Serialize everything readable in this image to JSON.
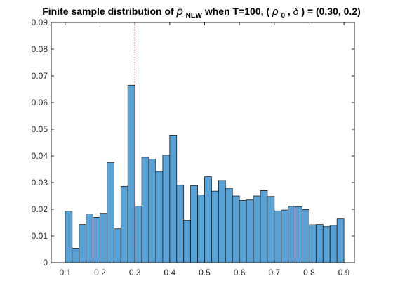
{
  "chart_data": {
    "type": "bar",
    "title": {
      "prefix": "Finite sample distribution of ",
      "symbol": "ρ",
      "symbol_subscript": "NEW",
      "middle": " when T=100, (",
      "param1_symbol": "ρ",
      "param1_subscript": "0",
      "separator": ",",
      "param2_symbol": "δ",
      "suffix": ") = (0.30, 0.2)"
    },
    "xlabel": "",
    "ylabel": "",
    "xlim": [
      0.06,
      0.93
    ],
    "ylim": [
      0,
      0.09
    ],
    "xticks": [
      0.1,
      0.2,
      0.3,
      0.4,
      0.5,
      0.6,
      0.7,
      0.8,
      0.9
    ],
    "xtick_labels": [
      "0.1",
      "0.2",
      "0.3",
      "0.4",
      "0.5",
      "0.6",
      "0.7",
      "0.8",
      "0.9"
    ],
    "yticks": [
      0,
      0.01,
      0.02,
      0.03,
      0.04,
      0.05,
      0.06,
      0.07,
      0.08,
      0.09
    ],
    "ytick_labels": [
      "0",
      "0.01",
      "0.02",
      "0.03",
      "0.04",
      "0.05",
      "0.06",
      "0.07",
      "0.08",
      "0.09"
    ],
    "bins": {
      "left_edges": [
        0.1,
        0.12,
        0.14,
        0.16,
        0.18,
        0.2,
        0.22,
        0.24,
        0.26,
        0.28,
        0.3,
        0.32,
        0.34,
        0.36,
        0.38,
        0.4,
        0.42,
        0.44,
        0.46,
        0.48,
        0.5,
        0.52,
        0.54,
        0.56,
        0.58,
        0.6,
        0.62,
        0.64,
        0.66,
        0.68,
        0.7,
        0.72,
        0.74,
        0.76,
        0.78,
        0.8,
        0.82,
        0.84,
        0.86,
        0.88
      ],
      "width": 0.02
    },
    "values": [
      0.0193,
      0.0054,
      0.0143,
      0.0183,
      0.017,
      0.0185,
      0.0376,
      0.0127,
      0.0286,
      0.0665,
      0.0212,
      0.0395,
      0.0388,
      0.0342,
      0.0403,
      0.0478,
      0.029,
      0.0159,
      0.0288,
      0.0254,
      0.0322,
      0.0268,
      0.0308,
      0.0279,
      0.025,
      0.0233,
      0.0235,
      0.025,
      0.027,
      0.0248,
      0.0194,
      0.0197,
      0.0211,
      0.021,
      0.0199,
      0.0142,
      0.0143,
      0.0135,
      0.014,
      0.0164
    ],
    "reference_line": {
      "x": 0.3,
      "style": "dotted",
      "color": "#8b2a2a"
    },
    "bar_color": "#5aa2d6",
    "bar_edge_color": "#1a1a1a",
    "grid": false,
    "legend": "none"
  }
}
